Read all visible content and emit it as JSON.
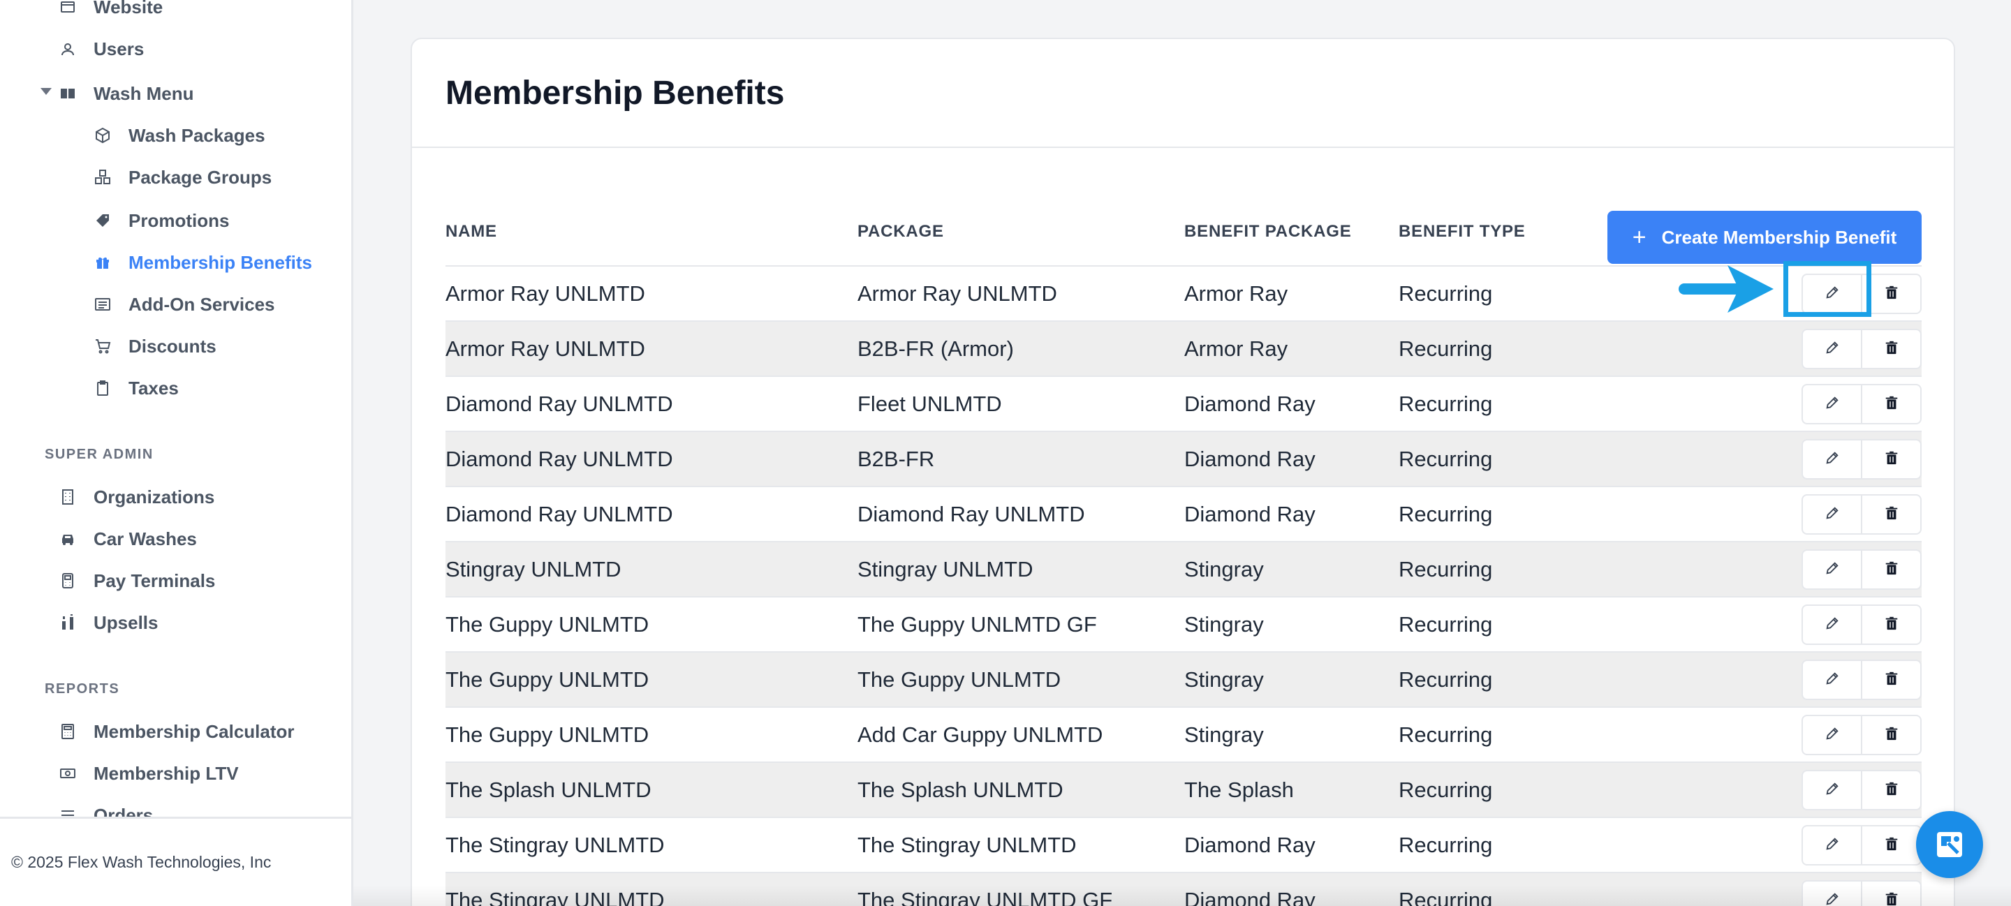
{
  "sidebar": {
    "items": [
      {
        "label": "Website",
        "icon": "website-icon"
      },
      {
        "label": "Users",
        "icon": "users-icon"
      },
      {
        "label": "Wash Menu",
        "icon": "book-icon"
      },
      {
        "label": "Wash Packages",
        "icon": "cube-icon"
      },
      {
        "label": "Package Groups",
        "icon": "cubes-icon"
      },
      {
        "label": "Promotions",
        "icon": "tag-icon"
      },
      {
        "label": "Membership Benefits",
        "icon": "gift-icon",
        "active": true
      },
      {
        "label": "Add-On Services",
        "icon": "list-card-icon"
      },
      {
        "label": "Discounts",
        "icon": "cart-icon"
      },
      {
        "label": "Taxes",
        "icon": "clipboard-icon"
      },
      {
        "label": "Organizations",
        "icon": "building-icon"
      },
      {
        "label": "Car Washes",
        "icon": "car-icon"
      },
      {
        "label": "Pay Terminals",
        "icon": "terminal-icon"
      },
      {
        "label": "Upsells",
        "icon": "bars-icon"
      },
      {
        "label": "Membership Calculator",
        "icon": "calculator-icon"
      },
      {
        "label": "Membership LTV",
        "icon": "money-icon"
      },
      {
        "label": "Orders",
        "icon": "orders-icon"
      }
    ],
    "sections": {
      "super_admin": "SUPER ADMIN",
      "reports": "REPORTS"
    },
    "footer": "© 2025 Flex Wash Technologies, Inc"
  },
  "main": {
    "title": "Membership Benefits",
    "create_button": "Create Membership Benefit",
    "create_icon": "+",
    "columns": [
      "NAME",
      "PACKAGE",
      "BENEFIT PACKAGE",
      "BENEFIT TYPE"
    ],
    "rows": [
      [
        "Armor Ray UNLMTD",
        "Armor Ray UNLMTD",
        "Armor Ray",
        "Recurring"
      ],
      [
        "Armor Ray UNLMTD",
        "B2B-FR (Armor)",
        "Armor Ray",
        "Recurring"
      ],
      [
        "Diamond Ray UNLMTD",
        "Fleet UNLMTD",
        "Diamond Ray",
        "Recurring"
      ],
      [
        "Diamond Ray UNLMTD",
        "B2B-FR",
        "Diamond Ray",
        "Recurring"
      ],
      [
        "Diamond Ray UNLMTD",
        "Diamond Ray UNLMTD",
        "Diamond Ray",
        "Recurring"
      ],
      [
        "Stingray UNLMTD",
        "Stingray UNLMTD",
        "Stingray",
        "Recurring"
      ],
      [
        "The Guppy UNLMTD",
        "The Guppy UNLMTD GF",
        "Stingray",
        "Recurring"
      ],
      [
        "The Guppy UNLMTD",
        "The Guppy UNLMTD",
        "Stingray",
        "Recurring"
      ],
      [
        "The Guppy UNLMTD",
        "Add Car Guppy UNLMTD",
        "Stingray",
        "Recurring"
      ],
      [
        "The Splash UNLMTD",
        "The Splash UNLMTD",
        "The Splash",
        "Recurring"
      ],
      [
        "The Stingray UNLMTD",
        "The Stingray UNLMTD",
        "Diamond Ray",
        "Recurring"
      ],
      [
        "The Stingray UNLMTD",
        "The Stingray UNLMTD GF",
        "Diamond Ray",
        "Recurring"
      ]
    ]
  },
  "colors": {
    "accent": "#3b82f6",
    "highlight": "#1aa0e6",
    "row_alt": "#eeeeee"
  }
}
